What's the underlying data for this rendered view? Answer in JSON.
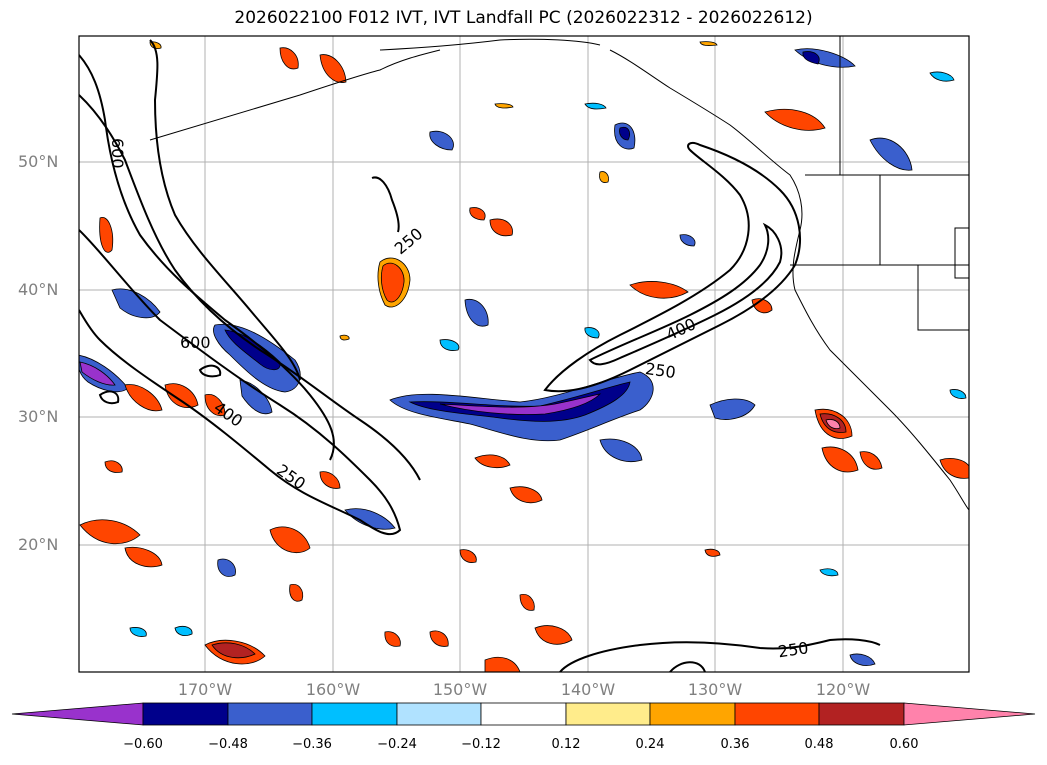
{
  "title": "2026022100 F012 IVT, IVT Landfall PC (2026022312 - 2026022612)",
  "latitude_labels": [
    "50°N",
    "40°N",
    "30°N",
    "20°N"
  ],
  "longitude_labels": [
    "170°W",
    "160°W",
    "150°W",
    "140°W",
    "130°W",
    "120°W"
  ],
  "contour_labels": [
    "250",
    "400",
    "600"
  ],
  "colorbar": {
    "tick_labels": [
      "−0.60",
      "−0.48",
      "−0.36",
      "−0.24",
      "−0.12",
      "0.12",
      "0.24",
      "0.36",
      "0.48",
      "0.60"
    ],
    "colors": [
      "#9932cc",
      "#00008b",
      "#3a5fcd",
      "#00bfff",
      "#b0e2ff",
      "#ffffff",
      "#ffec8b",
      "#ffa500",
      "#ff4500",
      "#b22222",
      "#ff82ab"
    ]
  },
  "colors": {
    "contour": "#000000",
    "coastline": "#000000",
    "grid": "#b0b0b0"
  }
}
